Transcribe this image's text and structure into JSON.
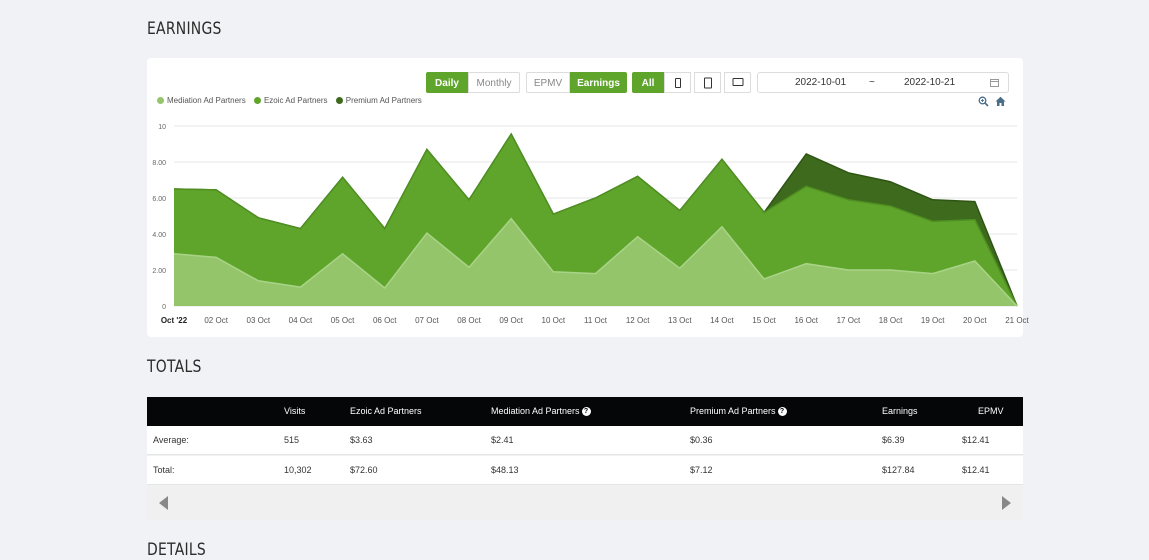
{
  "sections": {
    "earnings_title": "EARNINGS",
    "totals_title": "TOTALS",
    "details_title": "DETAILS"
  },
  "controls": {
    "daily": "Daily",
    "monthly": "Monthly",
    "epmv": "EPMV",
    "earnings": "Earnings",
    "all": "All",
    "date_start": "2022-10-01",
    "date_sep": "~",
    "date_end": "2022-10-21"
  },
  "legend": [
    {
      "label": "Mediation Ad Partners",
      "color": "#94c56b"
    },
    {
      "label": "Ezoic Ad Partners",
      "color": "#5fa52b"
    },
    {
      "label": "Premium Ad Partners",
      "color": "#3d6a1c"
    }
  ],
  "chart_data": {
    "type": "area",
    "stacked": true,
    "categories": [
      "Oct '22",
      "02 Oct",
      "03 Oct",
      "04 Oct",
      "05 Oct",
      "06 Oct",
      "07 Oct",
      "08 Oct",
      "09 Oct",
      "10 Oct",
      "11 Oct",
      "12 Oct",
      "13 Oct",
      "14 Oct",
      "15 Oct",
      "16 Oct",
      "17 Oct",
      "18 Oct",
      "19 Oct",
      "20 Oct",
      "21 Oct"
    ],
    "series": [
      {
        "name": "Mediation Ad Partners",
        "color": "#94c56b",
        "values": [
          2.9,
          2.7,
          1.4,
          1.05,
          2.9,
          1.0,
          4.05,
          2.15,
          4.85,
          1.9,
          1.8,
          3.85,
          2.1,
          4.4,
          1.5,
          2.35,
          2.0,
          2.0,
          1.8,
          2.5,
          0
        ]
      },
      {
        "name": "Ezoic Ad Partners",
        "color": "#5fa52b",
        "values": [
          3.6,
          3.75,
          3.5,
          3.25,
          4.25,
          3.3,
          4.65,
          3.75,
          4.7,
          3.2,
          4.2,
          3.35,
          3.2,
          3.75,
          3.7,
          4.3,
          3.9,
          3.55,
          2.9,
          2.3,
          0
        ]
      },
      {
        "name": "Premium Ad Partners",
        "color": "#3d6a1c",
        "values": [
          0,
          0,
          0,
          0,
          0,
          0,
          0,
          0,
          0,
          0,
          0,
          0,
          0,
          0,
          0,
          1.8,
          1.5,
          1.35,
          1.2,
          1.0,
          0
        ]
      }
    ],
    "y_ticks": [
      "0",
      "2.00",
      "4.00",
      "6.00",
      "8.00",
      "10"
    ],
    "ylim": [
      0,
      10
    ],
    "grid": true,
    "legend_position": "top-left"
  },
  "table": {
    "headers": [
      "Visits",
      "Ezoic Ad Partners",
      "Mediation Ad Partners",
      "Premium Ad Partners",
      "Earnings",
      "EPMV"
    ],
    "rows": [
      {
        "label": "Average:",
        "values": [
          "515",
          "$3.63",
          "$2.41",
          "$0.36",
          "$6.39",
          "$12.41"
        ]
      },
      {
        "label": "Total:",
        "values": [
          "10,302",
          "$72.60",
          "$48.13",
          "$7.12",
          "$127.84",
          "$12.41"
        ]
      }
    ],
    "help_icon": "?"
  }
}
